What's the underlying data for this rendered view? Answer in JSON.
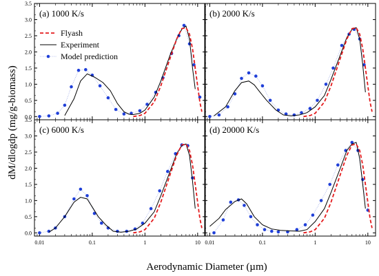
{
  "figure": {
    "ylabel": "dM/dlogdp (mg/g-biomass)",
    "xlabel": "Aerodynamic Diameter (µm)"
  },
  "legend": {
    "items": [
      {
        "label": "Flyash",
        "color": "#e41a1c",
        "style": "dashed"
      },
      {
        "label": "Experiment",
        "color": "#000000",
        "style": "solid"
      },
      {
        "label": "Model prediction",
        "color": "#1f3fd8",
        "style": "dotted-marker"
      }
    ]
  },
  "chart_data": [
    {
      "type": "line",
      "title": "(a) 1000 K/s",
      "xscale": "log",
      "xlim": [
        0.008,
        14
      ],
      "ylim": [
        -0.1,
        3.5
      ],
      "xticks": [
        0.01,
        0.1,
        1,
        10
      ],
      "yticks": [
        0.0,
        0.5,
        1.0,
        1.5,
        2.0,
        2.5,
        3.0,
        3.5
      ],
      "series": [
        {
          "name": "Experiment",
          "x": [
            0.03,
            0.045,
            0.06,
            0.08,
            0.11,
            0.16,
            0.22,
            0.3,
            0.4,
            0.5,
            0.6,
            0.8,
            1.0,
            1.5,
            2.0,
            3.0,
            4.0,
            5.0,
            6.0,
            7.0,
            8.0,
            9.0
          ],
          "y": [
            0.03,
            0.55,
            1.1,
            1.32,
            1.22,
            1.05,
            0.8,
            0.4,
            0.15,
            0.07,
            0.06,
            0.1,
            0.2,
            0.6,
            1.1,
            1.9,
            2.4,
            2.7,
            2.8,
            2.4,
            1.5,
            0.85
          ]
        },
        {
          "name": "Flyash",
          "x": [
            0.6,
            0.8,
            1.0,
            1.5,
            2.0,
            3.0,
            4.0,
            5.0,
            6.0,
            7.0,
            8.0,
            9.0,
            10.0,
            11.0,
            12.0
          ],
          "y": [
            0.0,
            0.03,
            0.1,
            0.45,
            0.95,
            1.8,
            2.4,
            2.72,
            2.75,
            2.55,
            2.1,
            1.5,
            0.95,
            0.45,
            0.15
          ]
        },
        {
          "name": "Model prediction",
          "x": [
            0.01,
            0.015,
            0.022,
            0.03,
            0.04,
            0.055,
            0.075,
            0.1,
            0.14,
            0.2,
            0.28,
            0.4,
            0.55,
            0.8,
            1.1,
            1.6,
            2.2,
            3.2,
            4.4,
            5.5,
            7.0,
            8.5,
            11.0
          ],
          "y": [
            0.0,
            0.02,
            0.1,
            0.35,
            0.92,
            1.43,
            1.45,
            1.28,
            0.95,
            0.58,
            0.22,
            0.08,
            0.1,
            0.18,
            0.38,
            0.75,
            1.2,
            1.95,
            2.5,
            2.82,
            2.25,
            1.6,
            0.6
          ]
        }
      ]
    },
    {
      "type": "line",
      "title": "(b) 2000 K/s",
      "xscale": "log",
      "xlim": [
        0.008,
        14
      ],
      "ylim": [
        -0.1,
        3.5
      ],
      "xticks": [
        0.01,
        0.1,
        1,
        10
      ],
      "yticks": [
        0.0,
        0.5,
        1.0,
        1.5,
        2.0,
        2.5,
        3.0,
        3.5
      ],
      "series": [
        {
          "name": "Experiment",
          "x": [
            0.012,
            0.02,
            0.03,
            0.04,
            0.055,
            0.07,
            0.09,
            0.12,
            0.18,
            0.25,
            0.35,
            0.5,
            0.7,
            1.0,
            1.5,
            2.0,
            3.0,
            4.0,
            5.0,
            6.0,
            7.0,
            8.0,
            9.0
          ],
          "y": [
            0.02,
            0.3,
            0.8,
            1.05,
            1.1,
            0.98,
            0.75,
            0.5,
            0.2,
            0.05,
            0.02,
            0.05,
            0.12,
            0.3,
            0.65,
            1.15,
            1.9,
            2.45,
            2.7,
            2.75,
            2.4,
            1.6,
            0.75
          ]
        },
        {
          "name": "Flyash",
          "x": [
            0.6,
            0.8,
            1.0,
            1.5,
            2.0,
            3.0,
            4.0,
            5.0,
            6.0,
            7.0,
            8.0,
            9.0,
            10.0,
            11.0,
            12.0
          ],
          "y": [
            0.0,
            0.03,
            0.1,
            0.45,
            0.95,
            1.8,
            2.4,
            2.72,
            2.75,
            2.55,
            2.1,
            1.5,
            0.95,
            0.45,
            0.15
          ]
        },
        {
          "name": "Model prediction",
          "x": [
            0.01,
            0.015,
            0.022,
            0.03,
            0.04,
            0.055,
            0.075,
            0.1,
            0.14,
            0.2,
            0.28,
            0.4,
            0.55,
            0.8,
            1.1,
            1.6,
            2.2,
            3.2,
            4.4,
            5.5,
            7.0,
            8.5
          ],
          "y": [
            0.0,
            0.05,
            0.3,
            0.7,
            1.18,
            1.35,
            1.25,
            0.95,
            0.5,
            0.2,
            0.08,
            0.05,
            0.12,
            0.25,
            0.5,
            1.0,
            1.5,
            2.2,
            2.55,
            2.7,
            2.4,
            1.6
          ]
        }
      ]
    },
    {
      "type": "line",
      "title": "(c) 6000 K/s",
      "xscale": "log",
      "xlim": [
        0.008,
        14
      ],
      "ylim": [
        -0.1,
        3.5
      ],
      "xticks": [
        0.01,
        0.1,
        1,
        10
      ],
      "yticks": [
        0.0,
        0.5,
        1.0,
        1.5,
        2.0,
        2.5,
        3.0,
        3.5
      ],
      "series": [
        {
          "name": "Experiment",
          "x": [
            0.015,
            0.02,
            0.03,
            0.045,
            0.06,
            0.08,
            0.1,
            0.13,
            0.18,
            0.25,
            0.35,
            0.5,
            0.7,
            1.0,
            1.5,
            2.0,
            3.0,
            4.0,
            5.0,
            6.0,
            7.0,
            8.0,
            9.0
          ],
          "y": [
            0.02,
            0.15,
            0.5,
            0.95,
            1.1,
            1.05,
            0.8,
            0.5,
            0.25,
            0.05,
            0.02,
            0.05,
            0.12,
            0.3,
            0.65,
            1.15,
            1.9,
            2.45,
            2.7,
            2.75,
            2.4,
            1.6,
            0.75
          ]
        },
        {
          "name": "Flyash",
          "x": [
            0.6,
            0.8,
            1.0,
            1.5,
            2.0,
            3.0,
            4.0,
            5.0,
            6.0,
            7.0,
            8.0,
            9.0,
            10.0,
            11.0,
            12.0
          ],
          "y": [
            0.0,
            0.03,
            0.1,
            0.45,
            0.95,
            1.8,
            2.4,
            2.72,
            2.75,
            2.55,
            2.1,
            1.5,
            0.95,
            0.45,
            0.15
          ]
        },
        {
          "name": "Model prediction",
          "x": [
            0.01,
            0.015,
            0.02,
            0.03,
            0.045,
            0.06,
            0.08,
            0.11,
            0.15,
            0.2,
            0.3,
            0.45,
            0.65,
            0.9,
            1.3,
            1.9,
            2.7,
            3.8,
            5.0,
            6.5,
            8.0
          ],
          "y": [
            0.0,
            0.05,
            0.15,
            0.5,
            1.05,
            1.35,
            1.15,
            0.6,
            0.3,
            0.15,
            0.05,
            0.05,
            0.12,
            0.3,
            0.75,
            1.3,
            1.9,
            2.45,
            2.72,
            2.7,
            1.7
          ]
        }
      ]
    },
    {
      "type": "line",
      "title": "(d) 20000 K/s",
      "xscale": "log",
      "xlim": [
        0.008,
        14
      ],
      "ylim": [
        -0.1,
        3.5
      ],
      "xticks": [
        0.01,
        0.1,
        1,
        10
      ],
      "yticks": [
        0.0,
        0.5,
        1.0,
        1.5,
        2.0,
        2.5,
        3.0,
        3.5
      ],
      "series": [
        {
          "name": "Experiment",
          "x": [
            0.01,
            0.015,
            0.02,
            0.03,
            0.04,
            0.05,
            0.07,
            0.1,
            0.15,
            0.22,
            0.35,
            0.5,
            0.7,
            1.0,
            1.5,
            2.0,
            3.0,
            4.0,
            5.0,
            6.0,
            7.0,
            8.0,
            9.0
          ],
          "y": [
            0.2,
            0.45,
            0.72,
            0.97,
            1.05,
            0.9,
            0.5,
            0.25,
            0.12,
            0.08,
            0.06,
            0.05,
            0.1,
            0.35,
            0.75,
            1.25,
            2.0,
            2.55,
            2.75,
            2.8,
            2.3,
            1.5,
            0.75
          ]
        },
        {
          "name": "Flyash",
          "x": [
            0.6,
            0.8,
            1.0,
            1.5,
            2.0,
            3.0,
            4.0,
            5.0,
            6.0,
            7.0,
            8.0,
            9.0,
            10.0,
            11.0,
            12.0
          ],
          "y": [
            0.0,
            0.03,
            0.1,
            0.45,
            0.95,
            1.8,
            2.4,
            2.72,
            2.75,
            2.55,
            2.1,
            1.5,
            0.95,
            0.45,
            0.15
          ]
        },
        {
          "name": "Model prediction",
          "x": [
            0.012,
            0.018,
            0.025,
            0.035,
            0.045,
            0.06,
            0.08,
            0.11,
            0.15,
            0.2,
            0.3,
            0.45,
            0.65,
            0.9,
            1.3,
            1.9,
            2.7,
            3.8,
            5.0,
            6.5,
            8.0,
            10.0
          ],
          "y": [
            0.0,
            0.4,
            0.95,
            1.02,
            0.85,
            0.5,
            0.25,
            0.1,
            0.05,
            0.03,
            0.03,
            0.1,
            0.25,
            0.55,
            1.0,
            1.5,
            2.1,
            2.55,
            2.8,
            2.55,
            1.65,
            0.7
          ]
        }
      ]
    }
  ]
}
